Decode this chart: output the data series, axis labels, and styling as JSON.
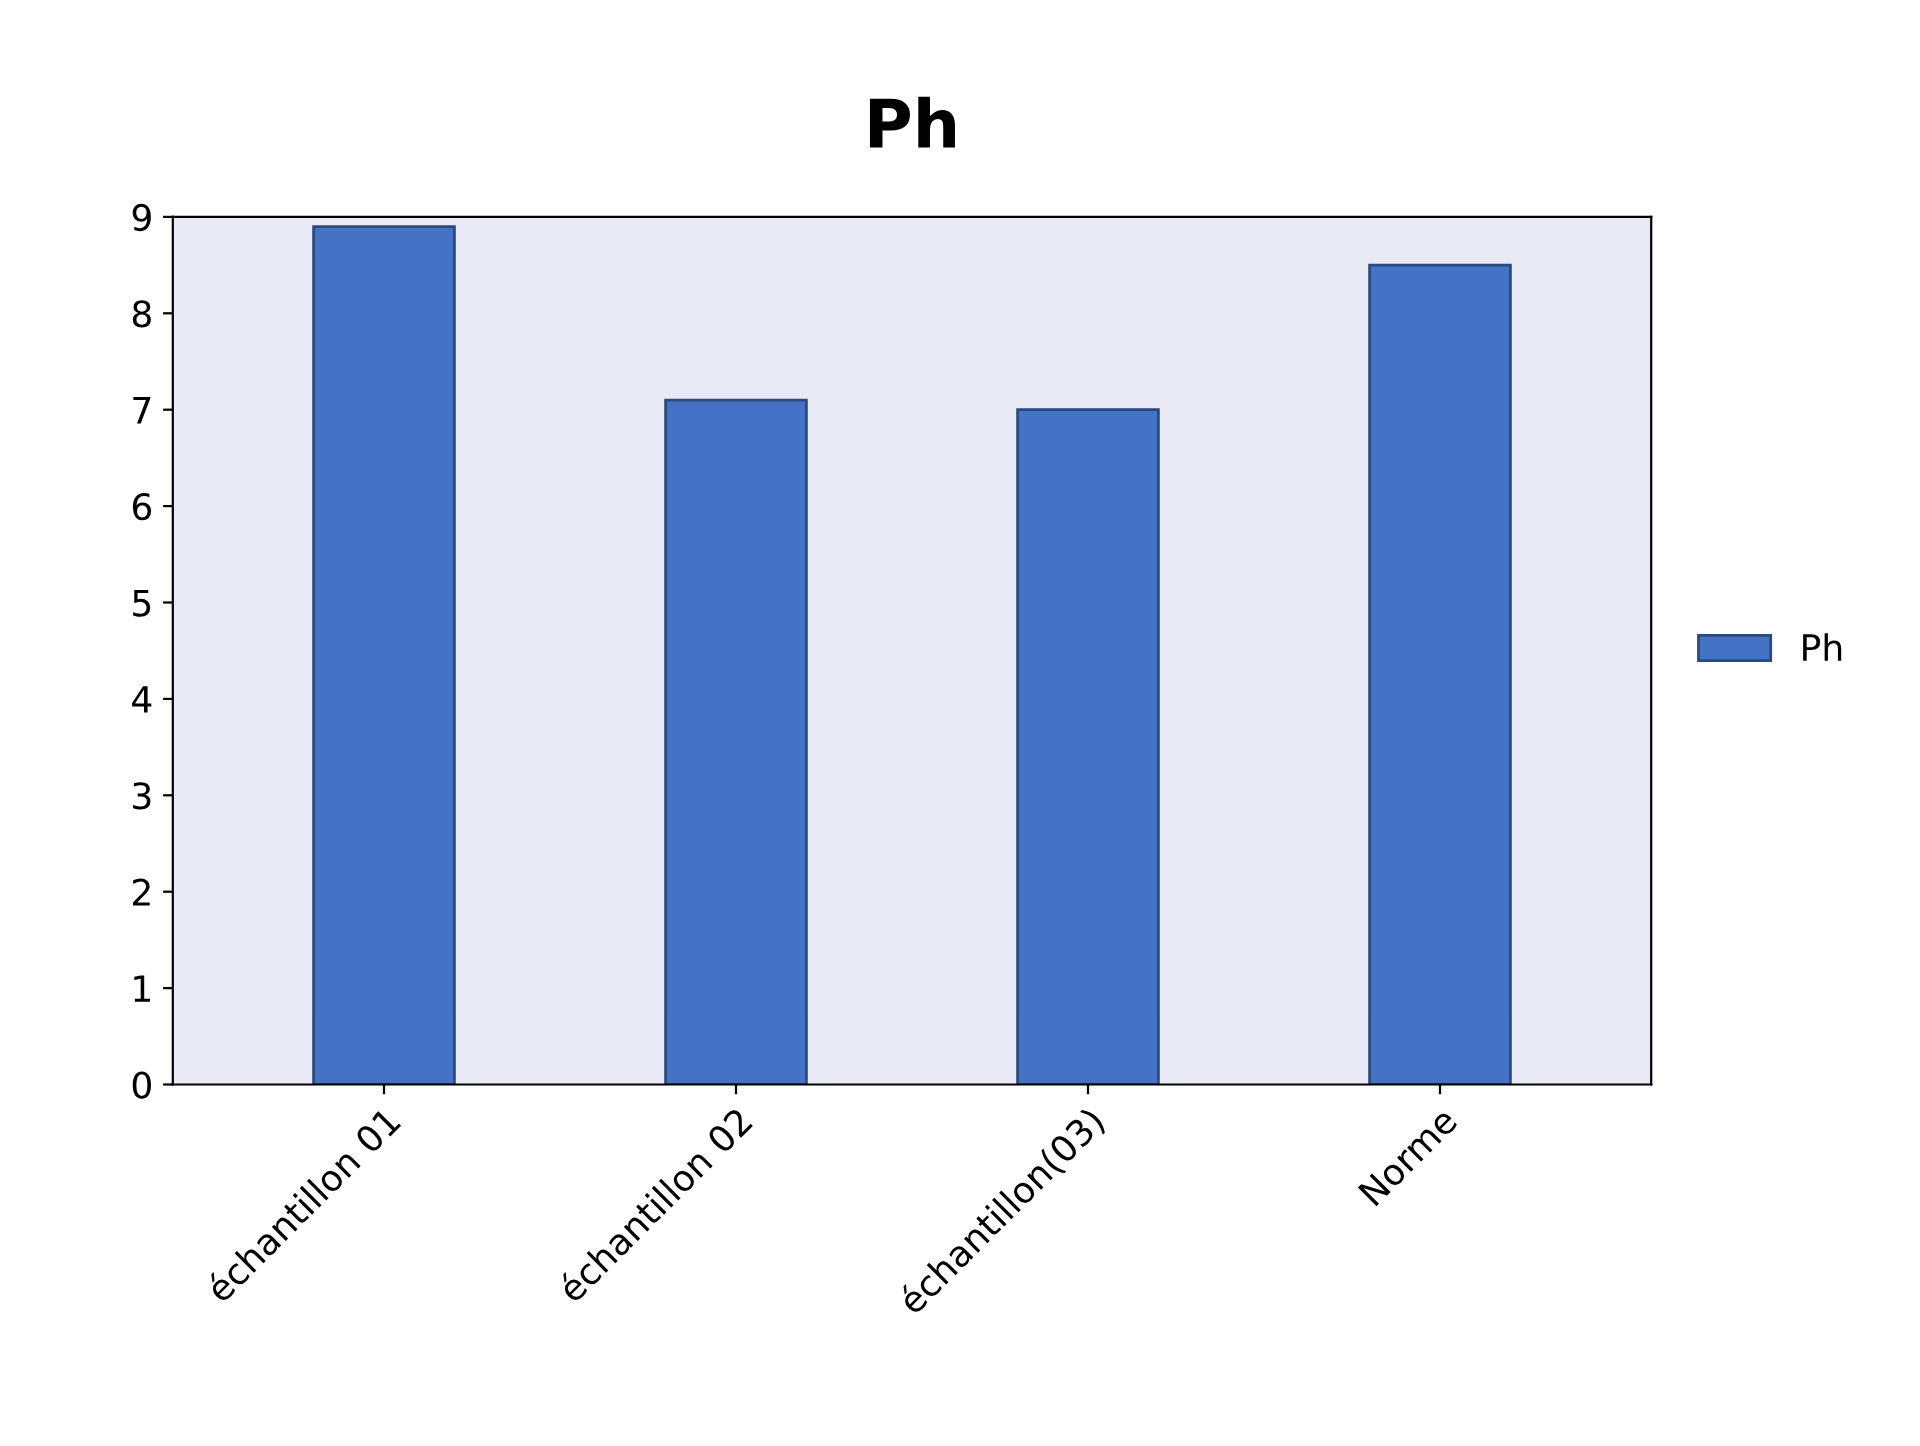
{
  "chart_data": {
    "type": "bar",
    "title": "Ph",
    "categories": [
      "échantillon 01",
      "échantillon 02",
      "échantillon(03)",
      "Norme"
    ],
    "series": [
      {
        "name": "Ph",
        "color": "#4472c4",
        "values": [
          8.9,
          7.1,
          7.0,
          8.5
        ]
      }
    ],
    "ylim": [
      0,
      9
    ],
    "yticks": [
      0,
      1,
      2,
      3,
      4,
      5,
      6,
      7,
      8,
      9
    ],
    "grid": false,
    "legend": "right"
  }
}
